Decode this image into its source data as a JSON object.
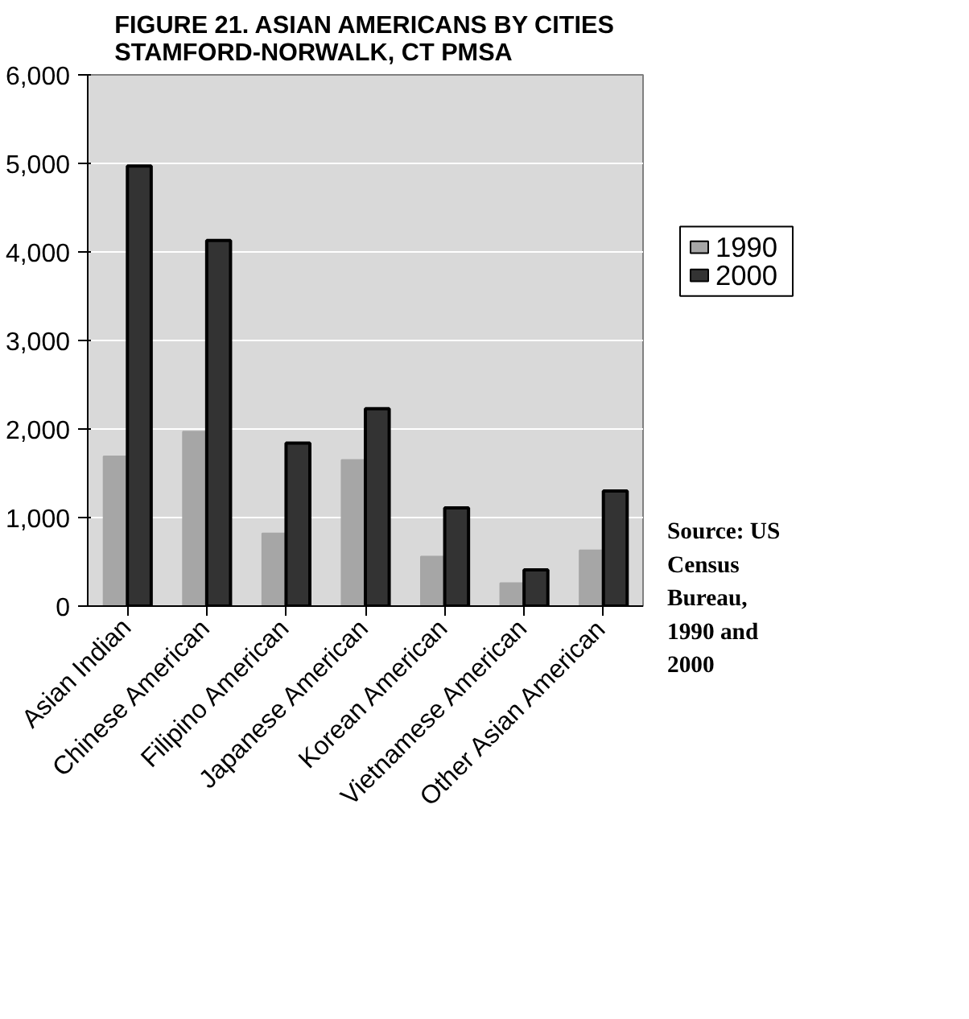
{
  "chart_data": {
    "type": "bar",
    "title": "FIGURE 21. ASIAN AMERICANS BY CITIES\nSTAMFORD-NORWALK, CT PMSA",
    "categories": [
      "Asian Indian",
      "Chinese American",
      "Filipino American",
      "Japanese American",
      "Korean American",
      "Vietnamese American",
      "Other Asian American"
    ],
    "series": [
      {
        "name": "1990",
        "color": "#a6a6a6",
        "values": [
          1690,
          1970,
          820,
          1650,
          560,
          260,
          630
        ]
      },
      {
        "name": "2000",
        "color": "#333333",
        "values": [
          4970,
          4130,
          1840,
          2230,
          1110,
          410,
          1300
        ]
      }
    ],
    "ylim": [
      0,
      6000
    ],
    "yticks": [
      {
        "value": 0,
        "label": "0"
      },
      {
        "value": 1000,
        "label": "1,000"
      },
      {
        "value": 2000,
        "label": "2,000"
      },
      {
        "value": 3000,
        "label": "3,000"
      },
      {
        "value": 4000,
        "label": "4,000"
      },
      {
        "value": 5000,
        "label": "5,000"
      },
      {
        "value": 6000,
        "label": "6,000"
      }
    ],
    "grid": "y",
    "legend": "right",
    "annotations": [
      "Source: US\nCensus\nBureau,\n1990 and\n2000"
    ]
  }
}
